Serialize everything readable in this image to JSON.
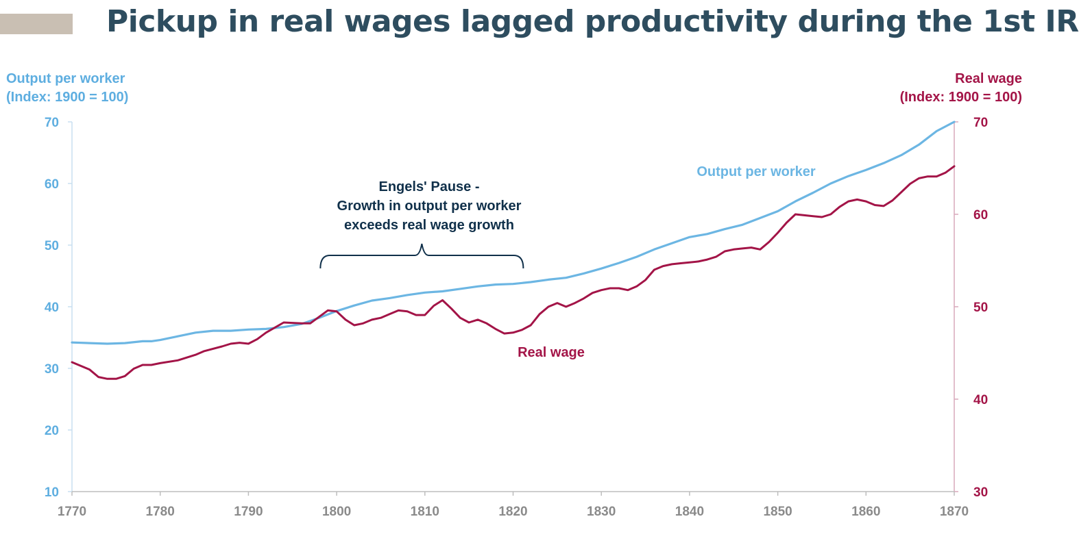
{
  "title": "Pickup in real wages lagged productivity during the 1st IR",
  "colors": {
    "title": "#2e4d5f",
    "accent_bar": "#c9bfb3",
    "output_series": "#6cb6e3",
    "wage_series": "#a31447",
    "left_axis": "#5eaee0",
    "right_axis": "#a31447",
    "x_axis": "#8a8a8a",
    "annotation": "#10304a"
  },
  "left_axis_label": {
    "line1": "Output per worker",
    "line2": "(Index:  1900 = 100)"
  },
  "right_axis_label": {
    "line1": "Real wage",
    "line2": "(Index:  1900 = 100)"
  },
  "chart_data": {
    "type": "line",
    "x_ticks": [
      "1770",
      "1780",
      "1790",
      "1800",
      "1810",
      "1820",
      "1830",
      "1840",
      "1850",
      "1860",
      "1870"
    ],
    "xlim": [
      1770,
      1870
    ],
    "y_left": {
      "ylim": [
        10,
        70
      ],
      "ticks": [
        "10",
        "20",
        "30",
        "40",
        "50",
        "60",
        "70"
      ]
    },
    "y_right": {
      "ylim": [
        30,
        70
      ],
      "ticks": [
        "30",
        "40",
        "50",
        "60",
        "70"
      ]
    },
    "grid": false,
    "series": [
      {
        "name": "Output per worker",
        "axis": "left",
        "x": [
          1770,
          1772,
          1774,
          1776,
          1778,
          1779,
          1780,
          1782,
          1784,
          1786,
          1788,
          1790,
          1792,
          1794,
          1796,
          1798,
          1800,
          1802,
          1804,
          1806,
          1808,
          1810,
          1812,
          1814,
          1816,
          1818,
          1820,
          1822,
          1824,
          1826,
          1828,
          1830,
          1832,
          1834,
          1836,
          1838,
          1840,
          1842,
          1844,
          1846,
          1848,
          1850,
          1852,
          1854,
          1856,
          1858,
          1860,
          1862,
          1864,
          1866,
          1868,
          1870
        ],
        "values": [
          34.2,
          34.1,
          34.0,
          34.1,
          34.4,
          34.4,
          34.6,
          35.2,
          35.8,
          36.1,
          36.1,
          36.3,
          36.4,
          36.7,
          37.2,
          38.2,
          39.3,
          40.2,
          41.0,
          41.4,
          41.9,
          42.3,
          42.5,
          42.9,
          43.3,
          43.6,
          43.7,
          44.0,
          44.4,
          44.7,
          45.4,
          46.2,
          47.1,
          48.1,
          49.3,
          50.3,
          51.3,
          51.8,
          52.6,
          53.3,
          54.4,
          55.5,
          57.1,
          58.5,
          60.0,
          61.2,
          62.2,
          63.3,
          64.6,
          66.3,
          68.5,
          71.3
        ]
      },
      {
        "name": "Real wage",
        "axis": "right",
        "x": [
          1770,
          1772,
          1773,
          1774,
          1775,
          1776,
          1777,
          1778,
          1779,
          1780,
          1782,
          1784,
          1785,
          1787,
          1788,
          1789,
          1790,
          1791,
          1792,
          1794,
          1796,
          1797,
          1799,
          1800,
          1801,
          1802,
          1803,
          1804,
          1805,
          1806,
          1807,
          1808,
          1809,
          1810,
          1811,
          1812,
          1813,
          1814,
          1815,
          1816,
          1817,
          1818,
          1819,
          1820,
          1821,
          1822,
          1823,
          1824,
          1825,
          1826,
          1827,
          1828,
          1829,
          1830,
          1831,
          1832,
          1833,
          1834,
          1835,
          1836,
          1837,
          1838,
          1839,
          1840,
          1841,
          1842,
          1843,
          1844,
          1845,
          1846,
          1847,
          1848,
          1849,
          1850,
          1851,
          1852,
          1853,
          1854,
          1855,
          1856,
          1857,
          1858,
          1859,
          1860,
          1861,
          1862,
          1863,
          1864,
          1865,
          1866,
          1867,
          1868,
          1869,
          1870
        ],
        "values": [
          44.0,
          43.2,
          42.4,
          42.2,
          42.2,
          42.5,
          43.3,
          43.7,
          43.7,
          43.9,
          44.2,
          44.8,
          45.2,
          45.7,
          46.0,
          46.1,
          46.0,
          46.5,
          47.2,
          48.3,
          48.2,
          48.2,
          49.6,
          49.5,
          48.6,
          48.0,
          48.2,
          48.6,
          48.8,
          49.2,
          49.6,
          49.5,
          49.1,
          49.1,
          50.1,
          50.7,
          49.8,
          48.8,
          48.3,
          48.6,
          48.2,
          47.6,
          47.1,
          47.2,
          47.5,
          48.0,
          49.2,
          50.0,
          50.4,
          50.0,
          50.4,
          50.9,
          51.5,
          51.8,
          52.0,
          52.0,
          51.8,
          52.2,
          52.9,
          54.0,
          54.4,
          54.6,
          54.7,
          54.8,
          54.9,
          55.1,
          55.4,
          56.0,
          56.2,
          56.3,
          56.4,
          56.2,
          57.0,
          58.0,
          59.1,
          60.0,
          59.9,
          59.8,
          59.7,
          60.0,
          60.8,
          61.4,
          61.6,
          61.4,
          61.0,
          60.9,
          61.5,
          62.4,
          63.3,
          63.9,
          64.1,
          64.1,
          64.5,
          65.2
        ]
      }
    ],
    "annotations": {
      "output_label": "Output per worker",
      "wage_label": "Real wage",
      "engels_line1": "Engels' Pause -",
      "engels_line2": "Growth in output per worker",
      "engels_line3": "exceeds real wage growth",
      "engels_range": [
        1798,
        1821
      ]
    }
  }
}
